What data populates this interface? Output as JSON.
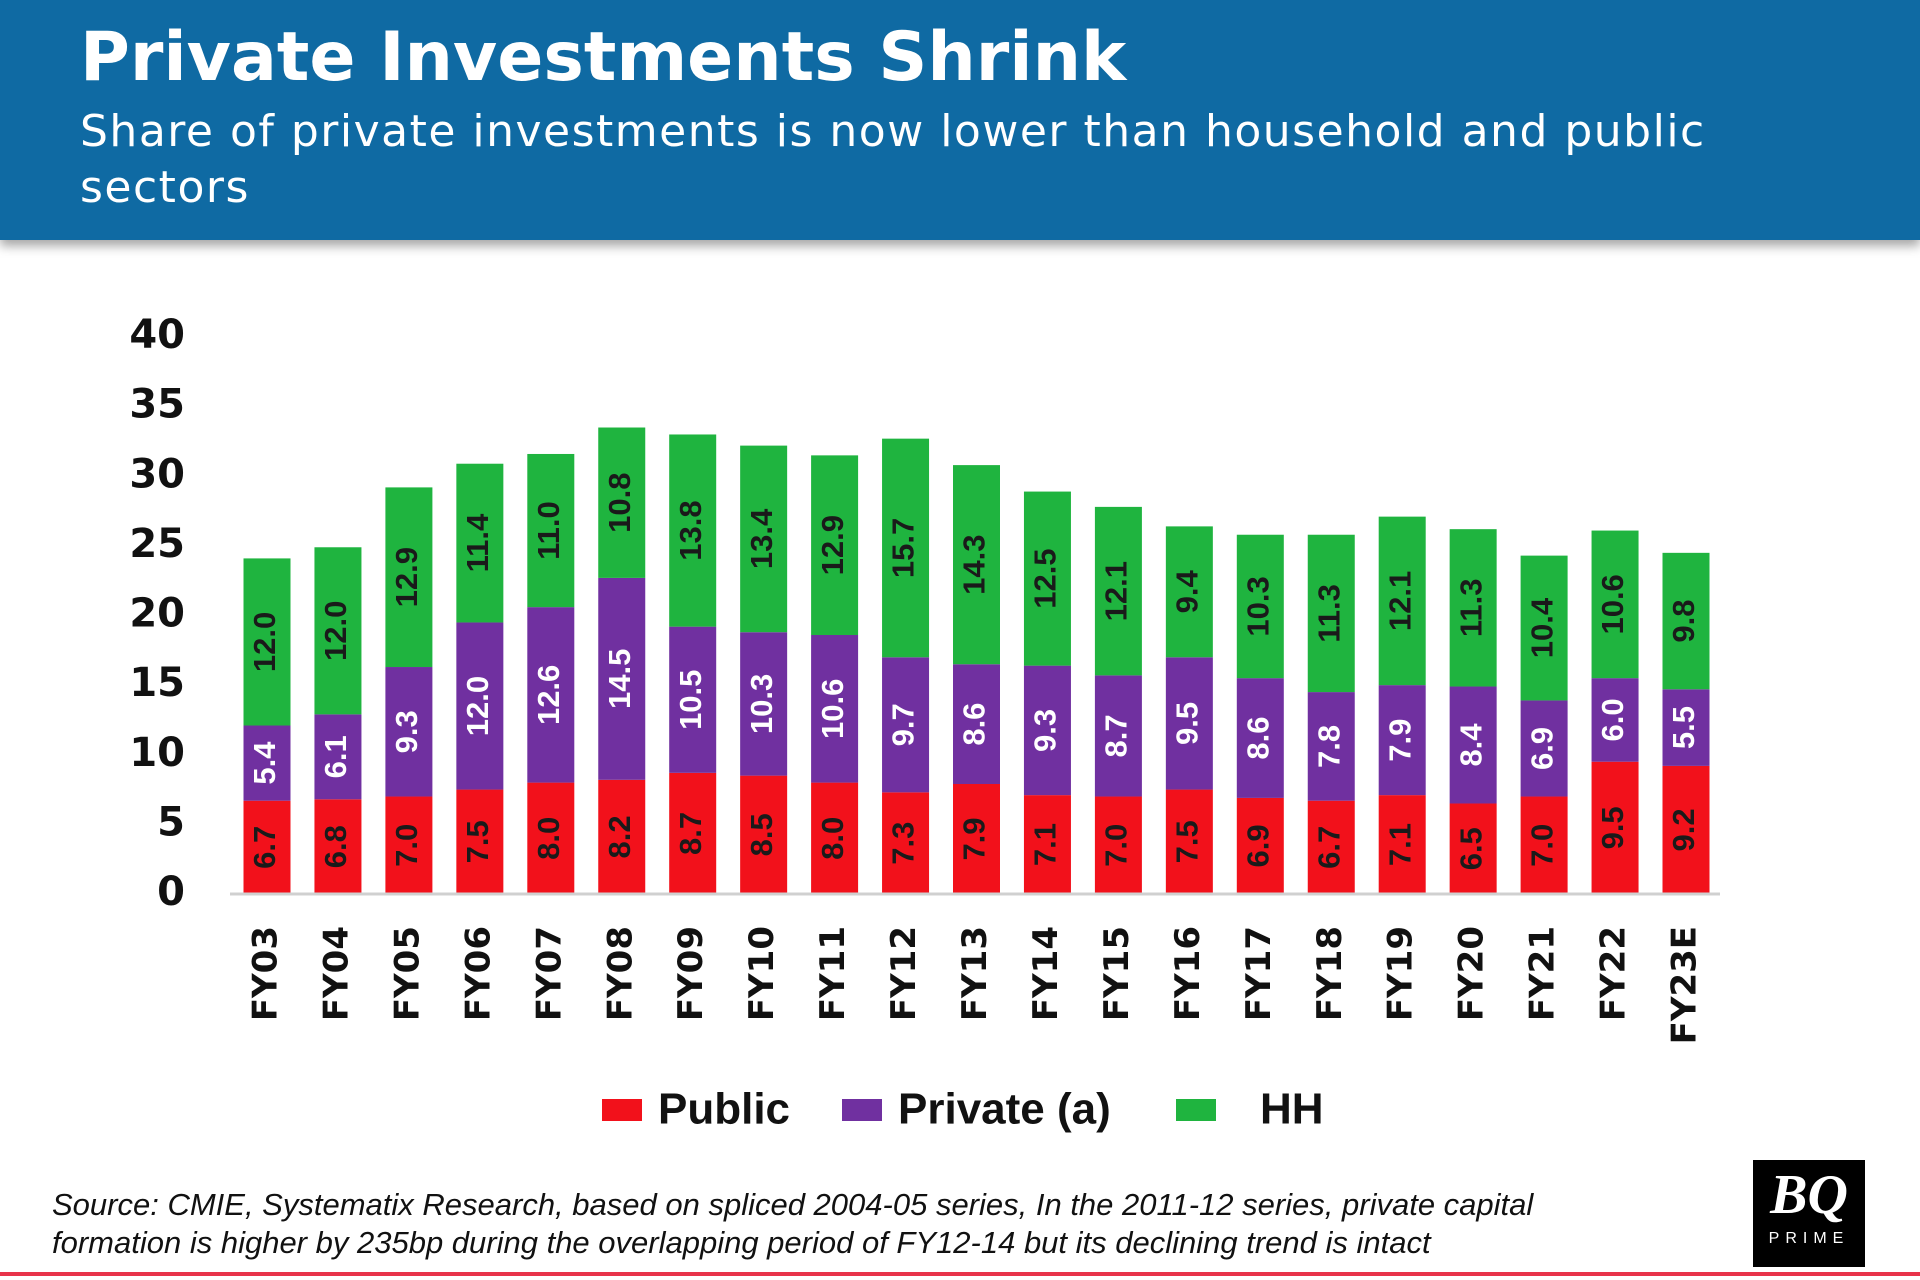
{
  "chart_data": {
    "type": "stacked_bar",
    "title": "Private Investments Shrink",
    "subtitle": "Share of private investments is now lower than household and public sectors",
    "categories": [
      "FY03",
      "FY04",
      "FY05",
      "FY06",
      "FY07",
      "FY08",
      "FY09",
      "FY10",
      "FY11",
      "FY12",
      "FY13",
      "FY14",
      "FY15",
      "FY16",
      "FY17",
      "FY18",
      "FY19",
      "FY20",
      "FY21",
      "FY22",
      "FY23E"
    ],
    "series": [
      {
        "name": "Public",
        "color": "#f2111b",
        "values": [
          6.7,
          6.8,
          7.0,
          7.5,
          8.0,
          8.2,
          8.7,
          8.5,
          8.0,
          7.3,
          7.9,
          7.1,
          7.0,
          7.5,
          6.9,
          6.7,
          7.1,
          6.5,
          7.0,
          9.5,
          9.2
        ],
        "value_labels": [
          "6.7",
          "6.8",
          "7.0",
          "7.5",
          "8.0",
          "8.2",
          "8.7",
          "8.5",
          "8.0",
          "7.3",
          "7.9",
          "7.1",
          "7.0",
          "7.5",
          "6.9",
          "6.7",
          "7.1",
          "6.5",
          "7.0",
          "9.5",
          "9.2"
        ]
      },
      {
        "name": "Private (a)",
        "color": "#7030a0",
        "values": [
          5.4,
          6.1,
          9.3,
          12.0,
          12.6,
          14.5,
          10.5,
          10.3,
          10.6,
          9.7,
          8.6,
          9.3,
          8.7,
          9.5,
          8.6,
          7.8,
          7.9,
          8.4,
          6.9,
          6.0,
          5.5
        ],
        "value_labels": [
          "5.4",
          "6.1",
          "9.3",
          "12.0",
          "12.6",
          "14.5",
          "10.5",
          "10.3",
          "10.6",
          "9.7",
          "8.6",
          "9.3",
          "8.7",
          "9.5",
          "8.6",
          "7.8",
          "7.9",
          "8.4",
          "6.9",
          "6.0",
          "5.5"
        ]
      },
      {
        "name": "HH",
        "color": "#1fb43f",
        "values": [
          12.0,
          12.0,
          12.9,
          11.4,
          11.0,
          10.8,
          13.8,
          13.4,
          12.9,
          15.7,
          14.3,
          12.5,
          12.1,
          9.4,
          10.3,
          11.3,
          12.1,
          11.3,
          10.4,
          10.6,
          9.8
        ],
        "value_labels": [
          "12.0",
          "12.0",
          "12.9",
          "11.4",
          "11.0",
          "10.8",
          "13.8",
          "13.4",
          "12.9",
          "15.7",
          "14.3",
          "12.5",
          "12.1",
          "9.4",
          "10.3",
          "11.3",
          "12.1",
          "11.3",
          "10.4",
          "10.6",
          "9.8"
        ]
      }
    ],
    "ylim": [
      0,
      40
    ],
    "yticks": [
      0,
      5,
      10,
      15,
      20,
      25,
      30,
      35,
      40
    ],
    "grid": false,
    "legend": "bottom"
  },
  "source": "Source: CMIE, Systematix Research, based on spliced 2004-05 series, In the 2011-12 series, private capital formation is higher by 235bp during the overlapping period of FY12-14 but its declining trend is intact",
  "logo": {
    "text": "BQ",
    "subtext": "PRIME"
  }
}
